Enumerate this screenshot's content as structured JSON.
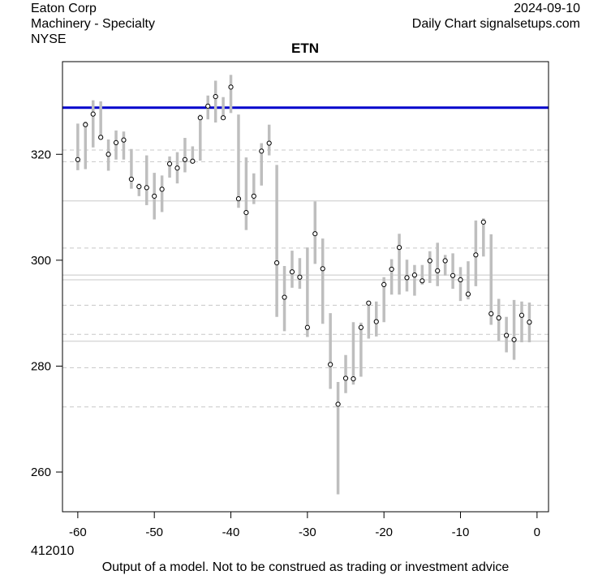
{
  "header": {
    "company": "Eaton Corp",
    "industry": "Machinery - Specialty",
    "exchange": "NYSE",
    "date": "2024-09-10",
    "source": "Daily Chart signalsetups.com"
  },
  "footer": {
    "code": "412010",
    "disclaimer": "Output of a model. Not to be construed as trading or investment advice"
  },
  "chart_data": {
    "type": "range-dot",
    "title": "ETN",
    "xlabel": "",
    "ylabel": "",
    "xlim": [
      -62,
      1.5
    ],
    "ylim": [
      252.5,
      337.5
    ],
    "xticks": [
      -60,
      -50,
      -40,
      -30,
      -20,
      -10,
      0
    ],
    "yticks": [
      260,
      280,
      300,
      320
    ],
    "colors": {
      "bar": "#bebebe",
      "level": "#0000cc",
      "dashed": "#c8c8c8",
      "solid": "#c8c8c8"
    },
    "level_line": 328.8,
    "dashed_lines": [
      320.8,
      318.6,
      302.3,
      291.5,
      286.0,
      279.7,
      272.3
    ],
    "solid_lines": [
      311.2,
      297.2,
      296.3,
      284.7
    ],
    "x": [
      -60,
      -59,
      -58,
      -57,
      -56,
      -55,
      -54,
      -53,
      -52,
      -51,
      -50,
      -49,
      -48,
      -47,
      -46,
      -45,
      -44,
      -43,
      -42,
      -41,
      -40,
      -39,
      -38,
      -37,
      -36,
      -35,
      -34,
      -33,
      -32,
      -31,
      -30,
      -29,
      -28,
      -27,
      -26,
      -25,
      -24,
      -23,
      -22,
      -21,
      -20,
      -19,
      -18,
      -17,
      -16,
      -15,
      -14,
      -13,
      -12,
      -11,
      -10,
      -9,
      -8,
      -7,
      -6,
      -5,
      -4,
      -3,
      -2,
      -1
    ],
    "low": [
      317.0,
      317.2,
      321.3,
      323.0,
      316.9,
      319.0,
      319.0,
      313.5,
      312.1,
      310.4,
      307.7,
      309.1,
      315.6,
      314.5,
      316.6,
      318.3,
      318.8,
      326.6,
      326.0,
      326.6,
      327.8,
      309.9,
      305.7,
      310.6,
      314.1,
      319.8,
      289.3,
      286.6,
      294.8,
      294.6,
      285.5,
      299.3,
      288.0,
      275.7,
      255.8,
      274.9,
      276.5,
      278.0,
      285.2,
      285.6,
      288.3,
      293.5,
      293.5,
      294.1,
      293.3,
      295.4,
      295.7,
      295.1,
      297.1,
      294.6,
      292.3,
      292.6,
      295.1,
      300.7,
      287.8,
      284.8,
      282.6,
      281.2,
      284.5,
      284.5
    ],
    "high": [
      325.8,
      326.2,
      330.2,
      330.0,
      322.8,
      324.5,
      324.3,
      321.0,
      314.5,
      319.8,
      316.5,
      316.0,
      319.6,
      320.4,
      323.1,
      321.5,
      327.5,
      331.1,
      333.9,
      330.8,
      335.0,
      327.5,
      319.4,
      316.4,
      322.1,
      325.6,
      318.0,
      298.9,
      301.8,
      300.4,
      302.4,
      311.1,
      304.1,
      290.0,
      277.0,
      282.1,
      288.3,
      288.2,
      292.0,
      292.2,
      296.8,
      300.2,
      305.0,
      300.1,
      299.1,
      299.1,
      301.7,
      303.3,
      301.0,
      301.3,
      298.7,
      299.8,
      307.5,
      307.9,
      304.9,
      292.7,
      289.3,
      292.5,
      292.2,
      292.0
    ],
    "close": [
      319.0,
      325.6,
      327.6,
      323.2,
      320.0,
      322.2,
      322.7,
      315.3,
      313.9,
      313.7,
      312.1,
      313.4,
      318.2,
      317.4,
      319.0,
      318.7,
      326.9,
      329.1,
      330.9,
      326.9,
      332.7,
      311.6,
      309.0,
      312.1,
      320.6,
      322.1,
      299.5,
      293.0,
      297.8,
      296.8,
      287.3,
      305.0,
      298.4,
      280.3,
      272.8,
      277.7,
      277.6,
      287.3,
      291.9,
      288.4,
      295.4,
      298.3,
      302.4,
      296.7,
      297.2,
      296.1,
      299.9,
      298.0,
      299.9,
      297.1,
      296.3,
      293.6,
      301.0,
      307.2,
      289.9,
      289.1,
      285.8,
      285.0,
      289.6,
      288.3
    ]
  }
}
